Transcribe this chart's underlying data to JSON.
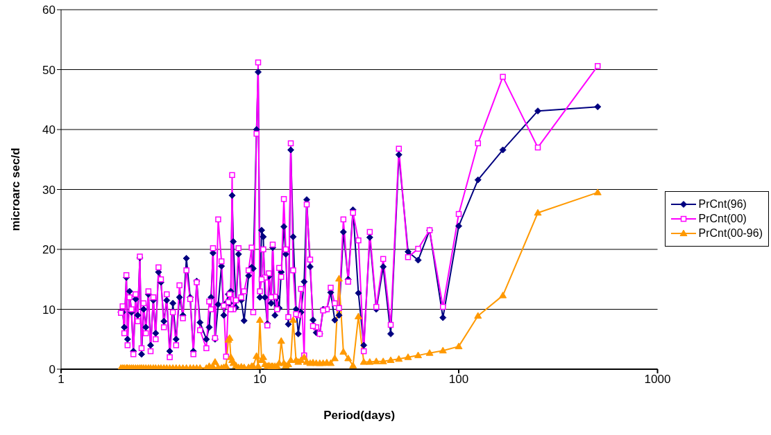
{
  "chart_data": {
    "type": "line",
    "xlabel": "Period(days)",
    "ylabel": "microarc sec/d",
    "log": "x",
    "xlim": [
      1,
      1000
    ],
    "xticks": [
      1,
      10,
      100,
      1000
    ],
    "ylim": [
      0,
      60
    ],
    "yticks": [
      0,
      10,
      20,
      30,
      40,
      50,
      60
    ],
    "grid": "y",
    "legend": "right",
    "line_style": "solid",
    "x": [
      500,
      250,
      166.7,
      125,
      100,
      83.3,
      71.4,
      62.5,
      55.6,
      50,
      45.5,
      41.7,
      38.5,
      35.7,
      33.3,
      31.3,
      29.4,
      27.8,
      26.3,
      25,
      23.8,
      22.7,
      21.7,
      20.8,
      20,
      19.2,
      18.5,
      17.9,
      17.2,
      16.7,
      16.1,
      15.6,
      15.2,
      14.7,
      14.3,
      13.9,
      13.5,
      13.2,
      12.8,
      12.5,
      12.2,
      11.9,
      11.6,
      11.4,
      11.1,
      10.9,
      10.6,
      10.4,
      10.2,
      10,
      9.8,
      9.62,
      9.26,
      9.09,
      8.77,
      8.33,
      8.06,
      7.81,
      7.58,
      7.35,
      7.25,
      7.14,
      7.04,
      6.94,
      6.76,
      6.58,
      6.41,
      6.17,
      5.95,
      5.81,
      5.68,
      5.56,
      5.38,
      5,
      4.81,
      4.63,
      4.46,
      4.27,
      4.1,
      3.94,
      3.79,
      3.65,
      3.52,
      3.4,
      3.29,
      3.18,
      3.09,
      2.99,
      2.91,
      2.82,
      2.75,
      2.67,
      2.6,
      2.54,
      2.49,
      2.43,
      2.37,
      2.31,
      2.26,
      2.21,
      2.16,
      2.13,
      2.08,
      2.04,
      2
    ],
    "series": [
      {
        "name": "PrCnt(96)",
        "color": "#000080",
        "marker": "diamond",
        "values": [
          43.8,
          43.1,
          36.6,
          31.6,
          23.9,
          8.6,
          23.2,
          18.2,
          19.6,
          35.8,
          5.9,
          17.1,
          10,
          22,
          4,
          12.7,
          26.6,
          15,
          22.9,
          9,
          8.2,
          12.8,
          10,
          10,
          5.9,
          6.1,
          8.2,
          17.1,
          28.3,
          14.6,
          9.5,
          5.9,
          10,
          22.1,
          36.6,
          7.5,
          19.2,
          23.8,
          16.2,
          10.2,
          12,
          9,
          20.3,
          11,
          15.5,
          7.6,
          12,
          22.1,
          23.2,
          12,
          49.6,
          40,
          16.8,
          17,
          15.6,
          8.1,
          11.5,
          19.2,
          10.3,
          21.3,
          29,
          13,
          11,
          12.5,
          11,
          9,
          17.2,
          10.8,
          5,
          19.4,
          12,
          7,
          5,
          7.8,
          14.7,
          3,
          12,
          18.5,
          9,
          12,
          5,
          11,
          3,
          11.5,
          8,
          14.5,
          16.2,
          6,
          11.5,
          4,
          12.5,
          7,
          10,
          2.5,
          18.6,
          9,
          11.7,
          3,
          9.5,
          13,
          5,
          15.3,
          7,
          9.5,
          9.5
        ]
      },
      {
        "name": "PrCnt(00)",
        "color": "#ff00ff",
        "marker": "square",
        "values": [
          50.6,
          37,
          48.8,
          37.7,
          25.9,
          10.4,
          23.2,
          20.1,
          18.7,
          36.8,
          7.4,
          18.4,
          10.4,
          22.9,
          3,
          21.5,
          26.1,
          14.6,
          25,
          10.2,
          11,
          13.6,
          10,
          9.8,
          5.9,
          7,
          7.2,
          18.3,
          27.5,
          2.3,
          13.4,
          9,
          9.2,
          16.5,
          37.7,
          8.7,
          20,
          28.4,
          15.4,
          16.9,
          10,
          12.1,
          20.8,
          12,
          16,
          7.3,
          15.3,
          20,
          15,
          13,
          51.2,
          39.3,
          9.5,
          20.3,
          16.5,
          13,
          12,
          20.2,
          11.5,
          10,
          32.4,
          10,
          12.5,
          11.2,
          2.1,
          10.6,
          18,
          25,
          5.2,
          20.2,
          10,
          11.3,
          3.5,
          6.5,
          14.5,
          2.5,
          11.7,
          16.5,
          8.5,
          14,
          4,
          9.5,
          2,
          12.5,
          7,
          15,
          17,
          5,
          12,
          3,
          13,
          6,
          11,
          3.5,
          18.8,
          8,
          12.5,
          2.5,
          10,
          12,
          4,
          15.7,
          6,
          10.5,
          9.4
        ]
      },
      {
        "name": "PrCnt(00-96)",
        "color": "#ff9900",
        "marker": "triangle",
        "values": [
          29.5,
          26.1,
          12.3,
          8.9,
          3.8,
          3.1,
          2.7,
          2.3,
          2,
          1.7,
          1.5,
          1.3,
          1.3,
          1.2,
          1.2,
          8.8,
          0.6,
          1.8,
          2.9,
          15.1,
          1.8,
          1,
          1.1,
          1,
          1,
          1,
          1.1,
          1,
          1.2,
          2,
          1.5,
          1.2,
          1.5,
          8.2,
          1.5,
          0.8,
          0.6,
          1,
          4.7,
          1,
          0.5,
          0.5,
          0.5,
          0.5,
          0.6,
          0.5,
          0.8,
          2,
          1.5,
          8.2,
          0.5,
          2.2,
          0.5,
          0.5,
          0.3,
          0.3,
          0.4,
          0.3,
          0.6,
          1,
          1.5,
          2,
          5.2,
          4.9,
          0.5,
          0.3,
          0.2,
          0.3,
          1.2,
          0.4,
          0.2,
          0.5,
          0.2,
          0.2,
          0.2,
          0.2,
          0.2,
          0.2,
          0.2,
          0.2,
          0.2,
          0.2,
          0.2,
          0.2,
          0.2,
          0.2,
          0.2,
          0.2,
          0.2,
          0.2,
          0.2,
          0.2,
          0.2,
          0.2,
          0.2,
          0.2,
          0.2,
          0.2,
          0.2,
          0.2,
          0.2,
          0.2,
          0.2,
          0.2,
          0.2
        ]
      }
    ]
  }
}
